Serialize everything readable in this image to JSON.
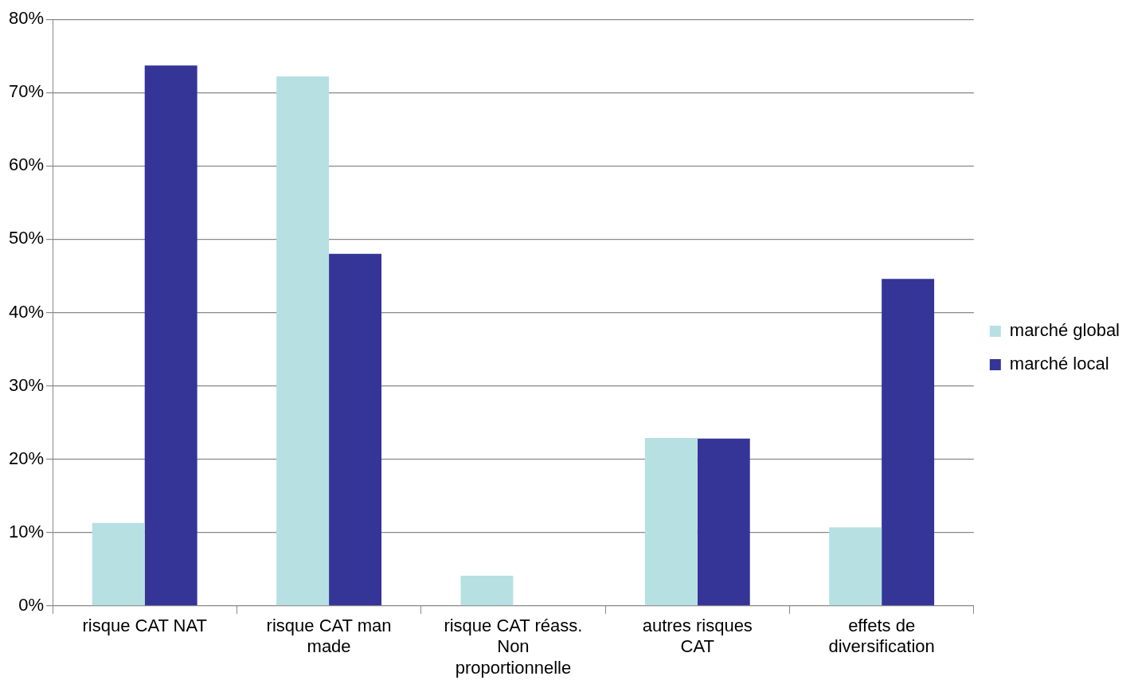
{
  "chart_data": {
    "type": "bar",
    "categories": [
      "risque CAT NAT",
      "risque CAT man made",
      "risque CAT réass. Non proportionnelle",
      "autres risques CAT",
      "effets de diversification"
    ],
    "series": [
      {
        "name": "marché global",
        "color": "#b7e0e3",
        "values": [
          11.3,
          72.2,
          4.1,
          22.9,
          10.7
        ]
      },
      {
        "name": "marché local",
        "color": "#353597",
        "values": [
          73.7,
          48.0,
          0,
          22.8,
          44.6
        ]
      }
    ],
    "ylim": [
      0,
      80
    ],
    "yticks": [
      {
        "value": 0,
        "label": "0%"
      },
      {
        "value": 10,
        "label": "10%"
      },
      {
        "value": 20,
        "label": "20%"
      },
      {
        "value": 30,
        "label": "30%"
      },
      {
        "value": 40,
        "label": "40%"
      },
      {
        "value": 50,
        "label": "50%"
      },
      {
        "value": 60,
        "label": "60%"
      },
      {
        "value": 70,
        "label": "70%"
      },
      {
        "value": 80,
        "label": "80%"
      }
    ],
    "grid": "y",
    "legend": "right"
  }
}
